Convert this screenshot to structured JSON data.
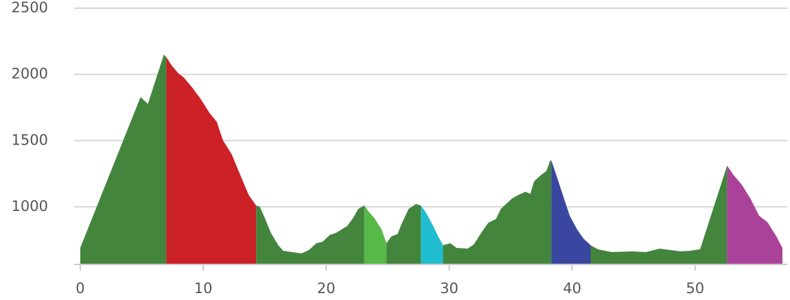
{
  "chart_data": {
    "type": "area",
    "xlim": [
      -0.5,
      57.1
    ],
    "xticks": [
      0,
      10,
      20,
      30,
      40,
      50
    ],
    "ylim": [
      565,
      2500
    ],
    "yticks": [
      1000,
      1500,
      2000,
      2500
    ],
    "grid": true,
    "series": [
      {
        "color": "#43853d",
        "x": [
          0,
          4.9,
          5.5,
          6.8,
          7.0
        ],
        "values": [
          690,
          1829,
          1777,
          2150,
          2130
        ]
      },
      {
        "color": "#cc2127",
        "x": [
          7.0,
          7.4,
          8.0,
          8.4,
          9.1,
          9.8,
          10.5,
          11.1,
          11.6,
          12.3,
          13.0,
          13.7,
          14.3
        ],
        "values": [
          2130,
          2072,
          2005,
          1979,
          1901,
          1813,
          1710,
          1642,
          1502,
          1399,
          1243,
          1088,
          1010
        ]
      },
      {
        "color": "#43853d",
        "x": [
          14.3,
          14.6,
          15.0,
          15.5,
          16.1,
          16.5,
          17.2,
          18.0,
          18.6,
          19.2,
          19.7,
          20.3,
          20.8,
          21.7,
          22.2,
          22.6,
          23.1
        ],
        "values": [
          1010,
          1000,
          917,
          803,
          710,
          668,
          658,
          648,
          674,
          725,
          736,
          788,
          803,
          855,
          917,
          984,
          1010
        ]
      },
      {
        "color": "#57b947",
        "x": [
          23.1,
          23.5,
          23.9,
          24.5,
          24.9
        ],
        "values": [
          1010,
          958,
          917,
          829,
          725
        ]
      },
      {
        "color": "#43853d",
        "x": [
          24.9,
          25.3,
          25.8,
          26.1,
          26.7,
          27.3,
          27.7
        ],
        "values": [
          725,
          777,
          793,
          865,
          984,
          1021,
          1010
        ]
      },
      {
        "color": "#20bdd0",
        "x": [
          27.7,
          28.1,
          28.7,
          29.1,
          29.5
        ],
        "values": [
          1010,
          958,
          855,
          777,
          710
        ]
      },
      {
        "color": "#43853d",
        "x": [
          29.5,
          30.1,
          30.6,
          31.5,
          32.0,
          32.6,
          33.2,
          33.8,
          34.2,
          35.1,
          35.6,
          36.2,
          36.6,
          36.9,
          37.5,
          37.9,
          38.2,
          38.3
        ],
        "values": [
          710,
          725,
          689,
          684,
          715,
          803,
          881,
          907,
          984,
          1062,
          1088,
          1114,
          1098,
          1192,
          1243,
          1269,
          1347,
          1352
        ]
      },
      {
        "color": "#3a47a0",
        "x": [
          38.3,
          38.7,
          39.3,
          39.8,
          40.4,
          40.9,
          41.5
        ],
        "values": [
          1352,
          1243,
          1073,
          933,
          829,
          762,
          710
        ]
      },
      {
        "color": "#43853d",
        "x": [
          41.5,
          42.1,
          43.2,
          44.9,
          46.0,
          47.1,
          48.8,
          49.6,
          50.4,
          52.6
        ],
        "values": [
          710,
          679,
          658,
          663,
          658,
          684,
          663,
          668,
          679,
          1311
        ]
      },
      {
        "color": "#ab429a",
        "x": [
          52.6,
          53.1,
          53.8,
          54.5,
          55.2,
          55.9,
          56.6,
          57.1
        ],
        "values": [
          1311,
          1243,
          1166,
          1062,
          933,
          881,
          777,
          690
        ]
      }
    ]
  }
}
